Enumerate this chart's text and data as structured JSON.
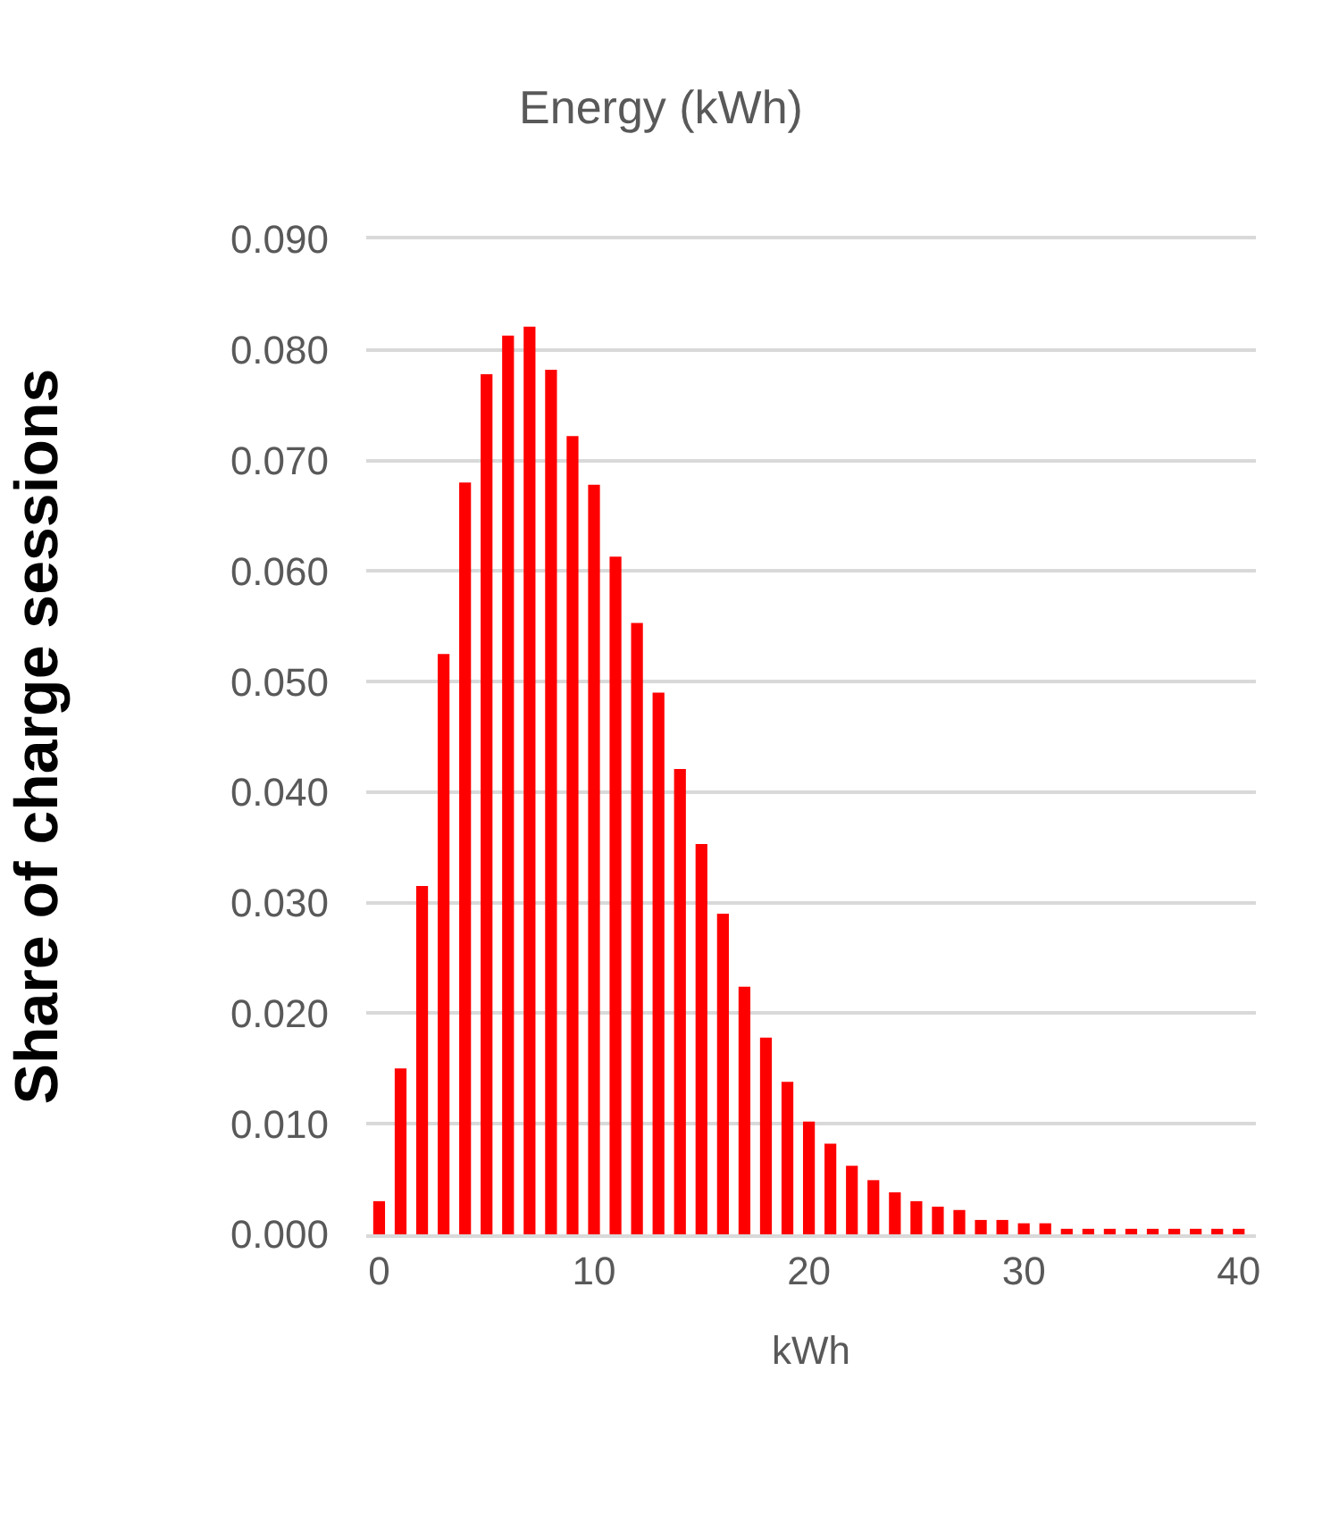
{
  "chart_data": {
    "type": "bar",
    "title": "Energy (kWh)",
    "xlabel": "kWh",
    "ylabel": "Share of charge sessions",
    "x": [
      0,
      1,
      2,
      3,
      4,
      5,
      6,
      7,
      8,
      9,
      10,
      11,
      12,
      13,
      14,
      15,
      16,
      17,
      18,
      19,
      20,
      21,
      22,
      23,
      24,
      25,
      26,
      27,
      28,
      29,
      30,
      31,
      32,
      33,
      34,
      35,
      36,
      37,
      38,
      39,
      40
    ],
    "values": [
      0.003,
      0.015,
      0.0315,
      0.0525,
      0.068,
      0.0778,
      0.0813,
      0.0821,
      0.0782,
      0.0722,
      0.0678,
      0.0613,
      0.0553,
      0.049,
      0.0421,
      0.0353,
      0.029,
      0.0224,
      0.0178,
      0.0138,
      0.0102,
      0.0082,
      0.0062,
      0.0049,
      0.0038,
      0.003,
      0.0025,
      0.0022,
      0.0013,
      0.0013,
      0.001,
      0.001,
      0.0005,
      0.0005,
      0.0005,
      0.0005,
      0.0005,
      0.0005,
      0.0005,
      0.0005,
      0.0005
    ],
    "color": "#ff0000",
    "xlim": [
      -0.6,
      40.8
    ],
    "xticks": [
      0,
      10,
      20,
      30,
      40
    ],
    "ylim": [
      0,
      0.09
    ],
    "yticks": [
      {
        "value": 0,
        "label": "0.000"
      },
      {
        "value": 0.01,
        "label": "0.010"
      },
      {
        "value": 0.02,
        "label": "0.020"
      },
      {
        "value": 0.03,
        "label": "0.030"
      },
      {
        "value": 0.04,
        "label": "0.040"
      },
      {
        "value": 0.05,
        "label": "0.050"
      },
      {
        "value": 0.06,
        "label": "0.060"
      },
      {
        "value": 0.07,
        "label": "0.070"
      },
      {
        "value": 0.08,
        "label": "0.080"
      },
      {
        "value": 0.09,
        "label": "0.090"
      }
    ],
    "grid": "y"
  }
}
